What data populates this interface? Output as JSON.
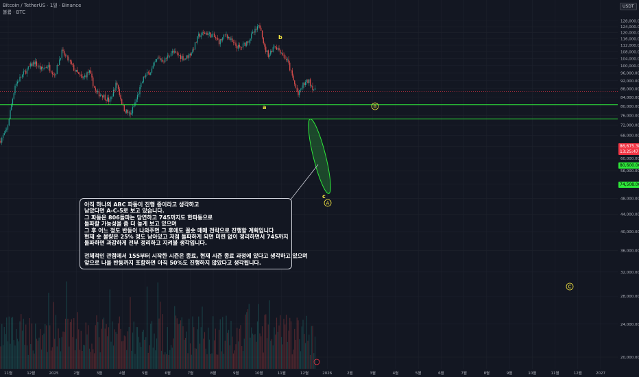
{
  "header": {
    "symbol_line": "Bitcoin / TetherUS · 1일 · Binance",
    "volume_line": "볼륨 · BTC"
  },
  "currency_button": "USDT",
  "price_tags": {
    "current_price": "86,675.38",
    "countdown": "13:25:47",
    "level_high": "80,600.00",
    "level_low": "74,508.00"
  },
  "wave_labels": {
    "a": "a",
    "b": "b",
    "c": "c",
    "A": "A",
    "B": "B",
    "C": "C"
  },
  "note_lines": [
    "아직 하나의 ABC 파동이 진행 중이라고 생각하고",
    "남았다면 A-C-5로 보고 있습니다.",
    "그 파동은 806돌파는 당연하고 745까지도 한파동으로",
    "돌파할 가능성을 좀 더 높게 보고 있으며",
    "그 후 어느 정도 반등이 나와주면 그 후에도 꼴숏 매매 전략으로 진행할 계획입니다",
    "현재 숏 물량은 25% 정도 남아있고 저점 돌파하게 되면 미련 없이 정리하면서 745까지",
    "돌파하면 과감하게 전부 정리하고 지켜볼 생각입니다.",
    "",
    "전체적인 관점에서 155부터 시작한 시즌은 종료, 현재 시즌 종료 과정에 있다고 생각하고 있으며",
    "앞으로 나올 반등까지 포함하면 아직 50%도 진행하지 않았다고 생각됩니다."
  ],
  "chart_data": {
    "type": "candlestick",
    "symbol": "Bitcoin / TetherUS",
    "exchange": "Binance",
    "x_tick_labels": [
      "11월",
      "12월",
      "2025",
      "2월",
      "3월",
      "4월",
      "5월",
      "6월",
      "7월",
      "8월",
      "9월",
      "10월",
      "11월",
      "12월",
      "2026",
      "2월",
      "3월",
      "4월",
      "5월",
      "6월",
      "7월",
      "8월",
      "9월",
      "10월",
      "11월",
      "12월",
      "2027"
    ],
    "y_tick_labels": [
      "20,000.00",
      "24,000.00",
      "28,000.00",
      "32,000.00",
      "36,000.00",
      "40,000.00",
      "44,000.00",
      "48,000.00",
      "52,000.00",
      "56,000.00",
      "60,000.00",
      "64,000.00",
      "68,000.00",
      "72,000.00",
      "76,000.00",
      "80,000.00",
      "84,000.00",
      "88,000.00",
      "92,000.00",
      "96,000.00",
      "100,000.00",
      "104,000.00",
      "108,000.00",
      "112,000.00",
      "116,000.00",
      "120,000.00",
      "124,000.00",
      "128,000.00"
    ],
    "scale": "log",
    "price_path": [
      [
        0,
        66000
      ],
      [
        10,
        70000
      ],
      [
        22,
        90000
      ],
      [
        35,
        96000
      ],
      [
        50,
        102000
      ],
      [
        60,
        98000
      ],
      [
        70,
        100000
      ],
      [
        80,
        95000
      ],
      [
        90,
        108000
      ],
      [
        100,
        103000
      ],
      [
        110,
        97000
      ],
      [
        120,
        93000
      ],
      [
        130,
        97000
      ],
      [
        140,
        86000
      ],
      [
        150,
        85000
      ],
      [
        160,
        82000
      ],
      [
        170,
        91000
      ],
      [
        180,
        79000
      ],
      [
        190,
        76000
      ],
      [
        200,
        84000
      ],
      [
        210,
        94000
      ],
      [
        220,
        97000
      ],
      [
        230,
        104000
      ],
      [
        240,
        103000
      ],
      [
        250,
        108000
      ],
      [
        260,
        106000
      ],
      [
        270,
        104000
      ],
      [
        280,
        108000
      ],
      [
        290,
        118000
      ],
      [
        300,
        120000
      ],
      [
        310,
        118000
      ],
      [
        320,
        114000
      ],
      [
        330,
        119000
      ],
      [
        340,
        113000
      ],
      [
        350,
        110000
      ],
      [
        360,
        114000
      ],
      [
        370,
        120000
      ],
      [
        380,
        125000
      ],
      [
        386,
        110000
      ],
      [
        392,
        106000
      ],
      [
        400,
        112000
      ],
      [
        410,
        108000
      ],
      [
        420,
        102000
      ],
      [
        428,
        92000
      ],
      [
        435,
        85000
      ],
      [
        442,
        90000
      ],
      [
        450,
        92000
      ],
      [
        460,
        86675
      ]
    ],
    "horizontal_levels": [
      80600,
      74508
    ],
    "current_price": 86675.38
  }
}
